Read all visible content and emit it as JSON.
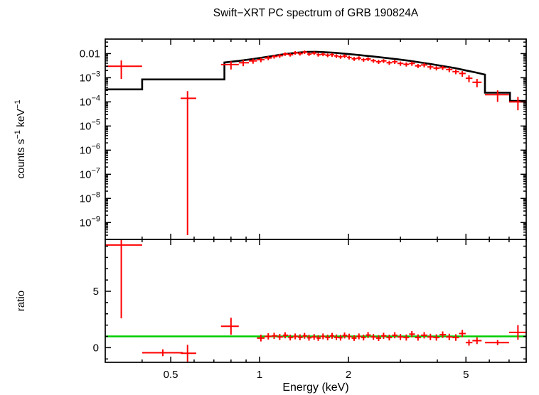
{
  "title": "Swift−XRT PC spectrum of GRB 190824A",
  "chart_data": [
    {
      "type": "scatter",
      "panel": "spectrum",
      "title": "Swift−XRT PC spectrum of GRB 190824A",
      "xlabel": "",
      "ylabel": "counts s−1 keV−1",
      "ylabel_parts": [
        {
          "t": "counts s"
        },
        {
          "t": "−1",
          "sup": true
        },
        {
          "t": " keV"
        },
        {
          "t": "−1",
          "sup": true
        }
      ],
      "xscale": "log",
      "yscale": "log",
      "xlim": [
        0.3,
        8.0
      ],
      "ylim": [
        2e-10,
        0.04
      ],
      "grid": false,
      "legend": "none",
      "x_ticks": [
        {
          "value": 0.5,
          "label": "0.5"
        },
        {
          "value": 1,
          "label": "1"
        },
        {
          "value": 2,
          "label": "2"
        },
        {
          "value": 5,
          "label": "5"
        }
      ],
      "y_ticks": [
        {
          "value": 0.01,
          "label": "0.01"
        },
        {
          "value": 0.001,
          "label": "10",
          "sup": "−3"
        },
        {
          "value": 0.0001,
          "label": "10",
          "sup": "−4"
        },
        {
          "value": 1e-05,
          "label": "10",
          "sup": "−5"
        },
        {
          "value": 1e-06,
          "label": "10",
          "sup": "−6"
        },
        {
          "value": 1e-07,
          "label": "10",
          "sup": "−7"
        },
        {
          "value": 1e-08,
          "label": "10",
          "sup": "−8"
        },
        {
          "value": 1e-09,
          "label": "10",
          "sup": "−9"
        }
      ],
      "series": [
        {
          "name": "observed-data",
          "color": "#ff0000",
          "marker": "cross-errorbar",
          "points_format": [
            "x",
            "xlo",
            "xhi",
            "y",
            "ylo",
            "yhi"
          ],
          "points": [
            [
              0.34,
              0.3,
              0.4,
              0.003,
              0.0009,
              0.0052
            ],
            [
              0.57,
              0.54,
              0.61,
              0.00014,
              3e-10,
              0.00028
            ],
            [
              0.8,
              0.74,
              0.85,
              0.0035,
              0.0022,
              0.0048
            ],
            [
              0.88,
              0.85,
              0.92,
              0.0042,
              0.003,
              0.0054
            ],
            [
              0.95,
              0.92,
              0.98,
              0.005,
              0.0038,
              0.0062
            ],
            [
              1.01,
              0.98,
              1.04,
              0.0056,
              0.0044,
              0.0068
            ],
            [
              1.07,
              1.04,
              1.1,
              0.0066,
              0.0053,
              0.0079
            ],
            [
              1.12,
              1.1,
              1.15,
              0.0076,
              0.0062,
              0.009
            ],
            [
              1.17,
              1.15,
              1.2,
              0.0082,
              0.0067,
              0.0097
            ],
            [
              1.22,
              1.2,
              1.25,
              0.0096,
              0.008,
              0.0112
            ],
            [
              1.27,
              1.25,
              1.3,
              0.009,
              0.0075,
              0.0105
            ],
            [
              1.32,
              1.3,
              1.35,
              0.0108,
              0.009,
              0.0126
            ],
            [
              1.37,
              1.35,
              1.4,
              0.01,
              0.0083,
              0.0117
            ],
            [
              1.42,
              1.4,
              1.45,
              0.0115,
              0.0096,
              0.0134
            ],
            [
              1.47,
              1.45,
              1.5,
              0.0096,
              0.008,
              0.0112
            ],
            [
              1.53,
              1.5,
              1.56,
              0.0105,
              0.0088,
              0.0122
            ],
            [
              1.58,
              1.56,
              1.61,
              0.009,
              0.0075,
              0.0105
            ],
            [
              1.64,
              1.61,
              1.67,
              0.0094,
              0.0078,
              0.011
            ],
            [
              1.7,
              1.67,
              1.73,
              0.0086,
              0.0071,
              0.0101
            ],
            [
              1.76,
              1.73,
              1.79,
              0.009,
              0.0074,
              0.0106
            ],
            [
              1.82,
              1.79,
              1.85,
              0.008,
              0.0066,
              0.0094
            ],
            [
              1.88,
              1.85,
              1.91,
              0.0074,
              0.0061,
              0.0087
            ],
            [
              1.94,
              1.91,
              1.98,
              0.0079,
              0.0065,
              0.0093
            ],
            [
              2.01,
              1.98,
              2.05,
              0.0069,
              0.0057,
              0.0081
            ],
            [
              2.09,
              2.05,
              2.13,
              0.0061,
              0.005,
              0.0072
            ],
            [
              2.17,
              2.13,
              2.21,
              0.0065,
              0.0053,
              0.0077
            ],
            [
              2.25,
              2.21,
              2.29,
              0.0056,
              0.0046,
              0.0066
            ],
            [
              2.33,
              2.29,
              2.38,
              0.006,
              0.0049,
              0.0071
            ],
            [
              2.43,
              2.38,
              2.48,
              0.0051,
              0.0042,
              0.006
            ],
            [
              2.53,
              2.48,
              2.58,
              0.0046,
              0.0037,
              0.0055
            ],
            [
              2.63,
              2.58,
              2.69,
              0.005,
              0.0041,
              0.0059
            ],
            [
              2.75,
              2.69,
              2.81,
              0.0042,
              0.0034,
              0.005
            ],
            [
              2.87,
              2.81,
              2.93,
              0.0046,
              0.0037,
              0.0055
            ],
            [
              3.0,
              2.93,
              3.07,
              0.0039,
              0.0031,
              0.0047
            ],
            [
              3.14,
              3.07,
              3.21,
              0.0036,
              0.0029,
              0.0043
            ],
            [
              3.28,
              3.21,
              3.36,
              0.0039,
              0.0031,
              0.0047
            ],
            [
              3.44,
              3.36,
              3.52,
              0.0031,
              0.0025,
              0.0037
            ],
            [
              3.61,
              3.52,
              3.7,
              0.0034,
              0.0027,
              0.0041
            ],
            [
              3.79,
              3.7,
              3.88,
              0.0028,
              0.0022,
              0.0034
            ],
            [
              3.97,
              3.88,
              4.07,
              0.0025,
              0.002,
              0.003
            ],
            [
              4.17,
              4.07,
              4.28,
              0.0026,
              0.0021,
              0.0031
            ],
            [
              4.39,
              4.28,
              4.5,
              0.0022,
              0.0017,
              0.0027
            ],
            [
              4.62,
              4.5,
              4.74,
              0.0018,
              0.0014,
              0.0022
            ],
            [
              4.86,
              4.74,
              4.99,
              0.0015,
              0.0011,
              0.0019
            ],
            [
              5.12,
              4.99,
              5.26,
              0.00095,
              0.00065,
              0.00125
            ],
            [
              5.45,
              5.26,
              5.65,
              0.00065,
              0.0004,
              0.0009
            ],
            [
              6.4,
              5.8,
              7.0,
              0.0002,
              0.0001,
              0.0003
            ],
            [
              7.5,
              7.0,
              8.0,
              0.0001,
              4.5e-05,
              0.00016
            ]
          ]
        },
        {
          "name": "folded-model",
          "color": "#000000",
          "style": "step-line",
          "vertices": [
            [
              0.3,
              0.00033
            ],
            [
              0.4,
              0.00033
            ],
            [
              0.4,
              0.00085
            ],
            [
              0.76,
              0.00085
            ],
            [
              0.76,
              0.0043
            ],
            [
              0.85,
              0.005
            ],
            [
              0.95,
              0.006
            ],
            [
              1.05,
              0.0072
            ],
            [
              1.15,
              0.0086
            ],
            [
              1.25,
              0.01
            ],
            [
              1.35,
              0.011
            ],
            [
              1.45,
              0.0118
            ],
            [
              1.55,
              0.0119
            ],
            [
              1.65,
              0.0115
            ],
            [
              1.8,
              0.0108
            ],
            [
              2.0,
              0.0096
            ],
            [
              2.2,
              0.0086
            ],
            [
              2.4,
              0.0077
            ],
            [
              2.6,
              0.0069
            ],
            [
              2.9,
              0.0059
            ],
            [
              3.2,
              0.0051
            ],
            [
              3.5,
              0.0043
            ],
            [
              3.8,
              0.0037
            ],
            [
              4.2,
              0.003
            ],
            [
              4.6,
              0.0025
            ],
            [
              5.0,
              0.002
            ],
            [
              5.4,
              0.00165
            ],
            [
              5.8,
              0.00135
            ],
            [
              5.8,
              0.00024
            ],
            [
              7.05,
              0.00024
            ],
            [
              7.05,
              0.00011
            ],
            [
              8.0,
              0.00011
            ]
          ]
        }
      ]
    },
    {
      "type": "scatter",
      "panel": "ratio",
      "xlabel": "Energy (keV)",
      "ylabel": "ratio",
      "xscale": "log",
      "yscale": "linear",
      "xlim": [
        0.3,
        8.0
      ],
      "ylim": [
        -1.3,
        9.6
      ],
      "grid": false,
      "legend": "none",
      "x_ticks": [
        {
          "value": 0.5,
          "label": "0.5"
        },
        {
          "value": 1,
          "label": "1"
        },
        {
          "value": 2,
          "label": "2"
        },
        {
          "value": 5,
          "label": "5"
        }
      ],
      "y_ticks": [
        {
          "value": 0,
          "label": "0"
        },
        {
          "value": 5,
          "label": "5"
        }
      ],
      "reference_line": {
        "y": 1,
        "color": "#00cc00"
      },
      "series": [
        {
          "name": "ratio-data",
          "color": "#ff0000",
          "marker": "cross-errorbar",
          "points_format": [
            "x",
            "xlo",
            "xhi",
            "y",
            "ylo",
            "yhi"
          ],
          "points": [
            [
              0.34,
              0.3,
              0.4,
              9.1,
              2.6,
              9.6
            ],
            [
              0.47,
              0.4,
              0.55,
              -0.45,
              -0.75,
              -0.15
            ],
            [
              0.57,
              0.54,
              0.61,
              -0.5,
              -1.25,
              0.25
            ],
            [
              0.8,
              0.74,
              0.85,
              1.9,
              1.15,
              2.65
            ],
            [
              1.01,
              0.98,
              1.04,
              0.85,
              0.55,
              1.15
            ],
            [
              1.07,
              1.04,
              1.1,
              1.0,
              0.72,
              1.28
            ],
            [
              1.12,
              1.1,
              1.15,
              1.05,
              0.78,
              1.32
            ],
            [
              1.17,
              1.15,
              1.2,
              0.95,
              0.68,
              1.22
            ],
            [
              1.22,
              1.2,
              1.25,
              1.1,
              0.83,
              1.37
            ],
            [
              1.27,
              1.25,
              1.3,
              0.9,
              0.64,
              1.16
            ],
            [
              1.32,
              1.3,
              1.35,
              1.0,
              0.74,
              1.26
            ],
            [
              1.37,
              1.35,
              1.4,
              0.92,
              0.66,
              1.18
            ],
            [
              1.42,
              1.4,
              1.45,
              1.05,
              0.79,
              1.31
            ],
            [
              1.47,
              1.45,
              1.5,
              0.88,
              0.62,
              1.14
            ],
            [
              1.53,
              1.5,
              1.56,
              0.95,
              0.7,
              1.2
            ],
            [
              1.58,
              1.56,
              1.61,
              0.85,
              0.6,
              1.1
            ],
            [
              1.64,
              1.61,
              1.67,
              1.0,
              0.74,
              1.26
            ],
            [
              1.7,
              1.67,
              1.73,
              0.9,
              0.65,
              1.15
            ],
            [
              1.76,
              1.73,
              1.79,
              1.05,
              0.79,
              1.31
            ],
            [
              1.82,
              1.79,
              1.85,
              0.92,
              0.67,
              1.17
            ],
            [
              1.88,
              1.85,
              1.91,
              0.88,
              0.63,
              1.13
            ],
            [
              1.94,
              1.91,
              1.98,
              1.08,
              0.82,
              1.34
            ],
            [
              2.01,
              1.98,
              2.05,
              0.98,
              0.72,
              1.24
            ],
            [
              2.09,
              2.05,
              2.13,
              0.85,
              0.6,
              1.1
            ],
            [
              2.17,
              2.13,
              2.21,
              1.0,
              0.74,
              1.26
            ],
            [
              2.25,
              2.21,
              2.29,
              0.9,
              0.64,
              1.16
            ],
            [
              2.33,
              2.29,
              2.38,
              1.12,
              0.85,
              1.39
            ],
            [
              2.43,
              2.38,
              2.48,
              0.95,
              0.69,
              1.21
            ],
            [
              2.53,
              2.48,
              2.58,
              0.85,
              0.59,
              1.11
            ],
            [
              2.63,
              2.58,
              2.69,
              1.05,
              0.78,
              1.32
            ],
            [
              2.75,
              2.69,
              2.81,
              0.9,
              0.64,
              1.16
            ],
            [
              2.87,
              2.81,
              2.93,
              1.1,
              0.83,
              1.37
            ],
            [
              3.0,
              2.93,
              3.07,
              0.95,
              0.68,
              1.22
            ],
            [
              3.14,
              3.07,
              3.21,
              0.9,
              0.63,
              1.17
            ],
            [
              3.28,
              3.21,
              3.36,
              1.2,
              0.92,
              1.48
            ],
            [
              3.44,
              3.36,
              3.52,
              0.9,
              0.62,
              1.18
            ],
            [
              3.61,
              3.52,
              3.7,
              1.1,
              0.82,
              1.38
            ],
            [
              3.79,
              3.7,
              3.88,
              0.95,
              0.67,
              1.23
            ],
            [
              3.97,
              3.88,
              4.07,
              0.9,
              0.62,
              1.18
            ],
            [
              4.17,
              4.07,
              4.28,
              1.15,
              0.86,
              1.44
            ],
            [
              4.39,
              4.28,
              4.5,
              0.95,
              0.66,
              1.24
            ],
            [
              4.62,
              4.5,
              4.74,
              0.9,
              0.61,
              1.19
            ],
            [
              4.86,
              4.74,
              4.99,
              1.25,
              0.93,
              1.57
            ],
            [
              5.12,
              4.99,
              5.26,
              0.45,
              0.18,
              0.72
            ],
            [
              5.45,
              5.26,
              5.65,
              0.62,
              0.32,
              0.92
            ],
            [
              6.4,
              5.8,
              7.0,
              0.45,
              0.22,
              0.68
            ],
            [
              7.5,
              7.0,
              8.0,
              1.35,
              0.7,
              2.0
            ]
          ]
        }
      ]
    }
  ]
}
